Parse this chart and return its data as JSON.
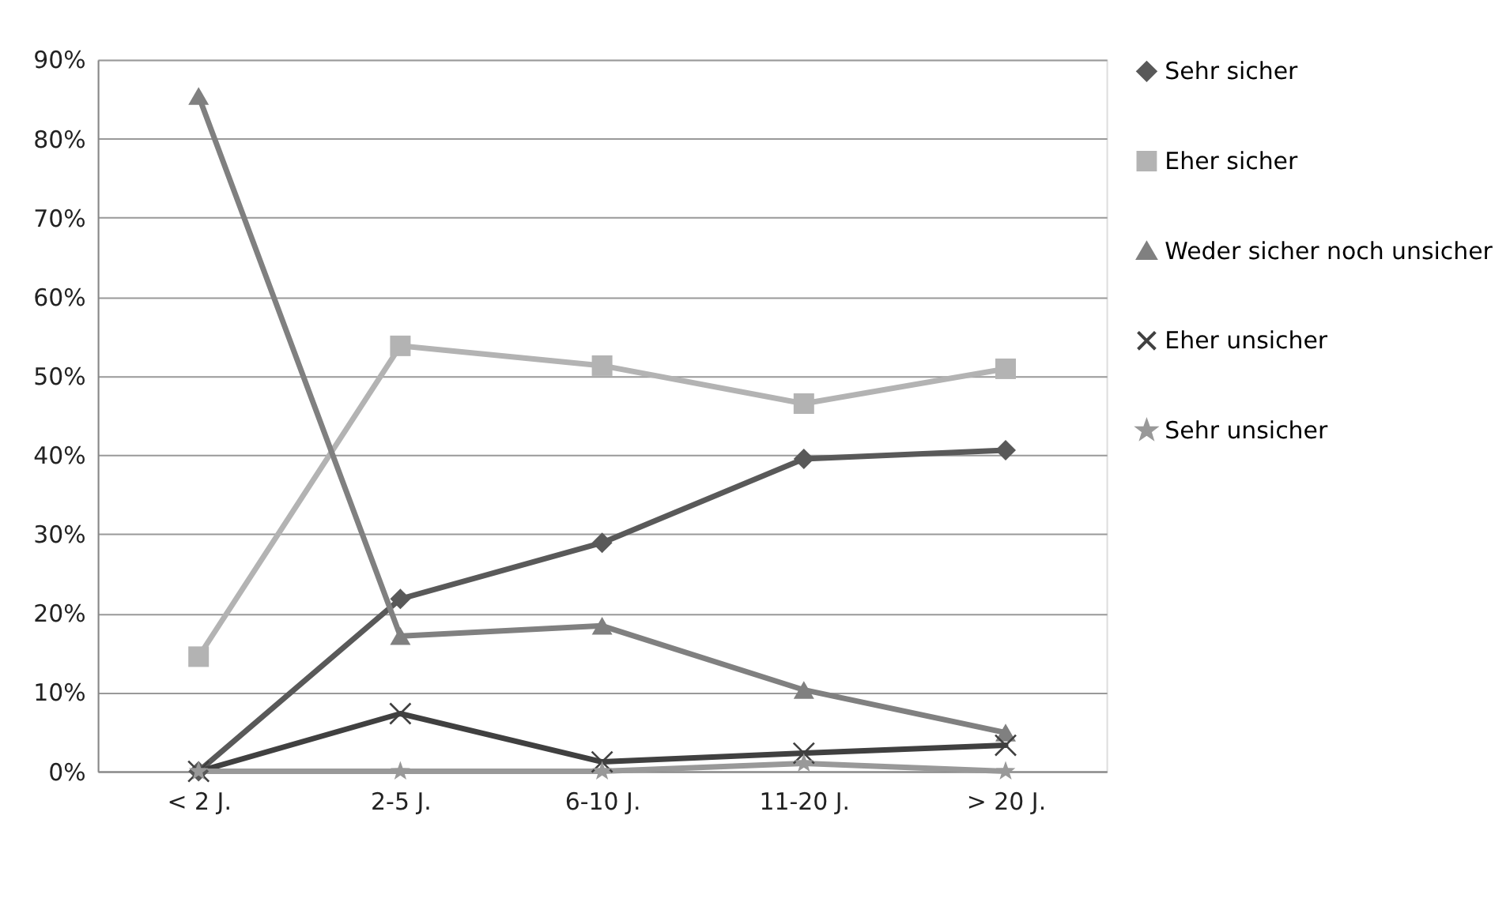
{
  "chart_data": {
    "type": "line",
    "categories": [
      "< 2 J.",
      "2-5 J.",
      "6-10 J.",
      "11-20 J.",
      "> 20 J."
    ],
    "ylim": [
      0,
      90
    ],
    "yticks": [
      {
        "value": 0,
        "label": "0%"
      },
      {
        "value": 10,
        "label": "10%"
      },
      {
        "value": 20,
        "label": "20%"
      },
      {
        "value": 30,
        "label": "30%"
      },
      {
        "value": 40,
        "label": "40%"
      },
      {
        "value": 50,
        "label": "50%"
      },
      {
        "value": 60,
        "label": "60%"
      },
      {
        "value": 70,
        "label": "70%"
      },
      {
        "value": 80,
        "label": "80%"
      },
      {
        "value": 90,
        "label": "90%"
      }
    ],
    "grid": "y",
    "legend": "right",
    "series": [
      {
        "name": "Sehr sicher",
        "color": "#595959",
        "marker": "diamond",
        "values": [
          0,
          21.8,
          28.9,
          39.5,
          40.6
        ]
      },
      {
        "name": "Eher sicher",
        "color": "#b3b3b3",
        "marker": "square",
        "values": [
          14.5,
          53.8,
          51.3,
          46.5,
          50.9
        ]
      },
      {
        "name": "Weder sicher noch unsicher",
        "color": "#808080",
        "marker": "triangle",
        "values": [
          85.4,
          17.1,
          18.4,
          10.3,
          4.9
        ]
      },
      {
        "name": "Eher unsicher",
        "color": "#404040",
        "marker": "cross",
        "values": [
          0,
          7.3,
          1.2,
          2.3,
          3.3
        ]
      },
      {
        "name": "Sehr unsicher",
        "color": "#999999",
        "marker": "star",
        "values": [
          0,
          0,
          0,
          1.0,
          0
        ]
      }
    ]
  }
}
